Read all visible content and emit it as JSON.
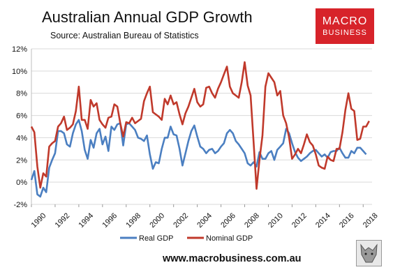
{
  "title": "Australian Annual GDP Growth",
  "subtitle": "Source: Australian Bureau of Statistics",
  "logo": {
    "line1": "MACRO",
    "line2": "BUSINESS"
  },
  "website": "www.macrobusiness.com.au",
  "colors": {
    "real": "#4b7fc1",
    "nominal": "#c0392b",
    "logo_bg": "#d7232a"
  },
  "chart_data": {
    "type": "line",
    "title": "Australian Annual GDP Growth",
    "ylim": [
      -2,
      12
    ],
    "xlim": [
      1990,
      2018.75
    ],
    "y_ticks": [
      "-2%",
      "0%",
      "2%",
      "4%",
      "6%",
      "8%",
      "10%",
      "12%"
    ],
    "x_ticks": [
      "1990",
      "1992",
      "1994",
      "1996",
      "1998",
      "2000",
      "2002",
      "2004",
      "2006",
      "2008",
      "2010",
      "2012",
      "2014",
      "2016",
      "2018"
    ],
    "grid": true,
    "legend_position": "bottom",
    "series": [
      {
        "name": "Real GDP",
        "color": "#4b7fc1",
        "points": [
          [
            1990.0,
            0.2
          ],
          [
            1990.25,
            1.0
          ],
          [
            1990.5,
            -1.1
          ],
          [
            1990.75,
            -1.3
          ],
          [
            1991.0,
            -0.5
          ],
          [
            1991.25,
            -0.9
          ],
          [
            1991.5,
            1.3
          ],
          [
            1991.75,
            2.0
          ],
          [
            1992.0,
            2.6
          ],
          [
            1992.25,
            4.6
          ],
          [
            1992.5,
            4.6
          ],
          [
            1992.75,
            4.4
          ],
          [
            1993.0,
            3.4
          ],
          [
            1993.25,
            3.2
          ],
          [
            1993.5,
            4.4
          ],
          [
            1993.75,
            5.2
          ],
          [
            1994.0,
            5.6
          ],
          [
            1994.25,
            4.6
          ],
          [
            1994.5,
            2.9
          ],
          [
            1994.75,
            2.1
          ],
          [
            1995.0,
            3.8
          ],
          [
            1995.25,
            3.1
          ],
          [
            1995.5,
            4.4
          ],
          [
            1995.75,
            4.8
          ],
          [
            1996.0,
            3.4
          ],
          [
            1996.25,
            4.1
          ],
          [
            1996.5,
            2.8
          ],
          [
            1996.75,
            5.0
          ],
          [
            1997.0,
            4.7
          ],
          [
            1997.25,
            5.2
          ],
          [
            1997.5,
            5.3
          ],
          [
            1997.75,
            3.3
          ],
          [
            1998.0,
            5.2
          ],
          [
            1998.25,
            5.3
          ],
          [
            1998.5,
            5.0
          ],
          [
            1998.75,
            4.7
          ],
          [
            1999.0,
            4.0
          ],
          [
            1999.25,
            3.9
          ],
          [
            1999.5,
            3.7
          ],
          [
            1999.75,
            4.2
          ],
          [
            2000.0,
            2.5
          ],
          [
            2000.25,
            1.2
          ],
          [
            2000.5,
            1.8
          ],
          [
            2000.75,
            1.7
          ],
          [
            2001.0,
            3.0
          ],
          [
            2001.25,
            4.0
          ],
          [
            2001.5,
            4.0
          ],
          [
            2001.75,
            5.0
          ],
          [
            2002.0,
            4.3
          ],
          [
            2002.25,
            4.2
          ],
          [
            2002.5,
            3.0
          ],
          [
            2002.75,
            1.5
          ],
          [
            2003.0,
            2.6
          ],
          [
            2003.25,
            3.7
          ],
          [
            2003.5,
            4.6
          ],
          [
            2003.75,
            5.1
          ],
          [
            2004.0,
            4.1
          ],
          [
            2004.25,
            3.2
          ],
          [
            2004.5,
            3.0
          ],
          [
            2004.75,
            2.6
          ],
          [
            2005.0,
            2.9
          ],
          [
            2005.25,
            3.0
          ],
          [
            2005.5,
            2.6
          ],
          [
            2005.75,
            2.8
          ],
          [
            2006.0,
            3.2
          ],
          [
            2006.25,
            3.5
          ],
          [
            2006.5,
            4.4
          ],
          [
            2006.75,
            4.7
          ],
          [
            2007.0,
            4.4
          ],
          [
            2007.25,
            3.7
          ],
          [
            2007.5,
            3.4
          ],
          [
            2007.75,
            3.0
          ],
          [
            2008.0,
            2.6
          ],
          [
            2008.25,
            1.7
          ],
          [
            2008.5,
            1.5
          ],
          [
            2008.75,
            1.8
          ],
          [
            2009.0,
            1.4
          ],
          [
            2009.25,
            2.7
          ],
          [
            2009.5,
            2.1
          ],
          [
            2009.75,
            2.1
          ],
          [
            2010.0,
            2.6
          ],
          [
            2010.25,
            2.8
          ],
          [
            2010.5,
            2.0
          ],
          [
            2010.75,
            2.9
          ],
          [
            2011.0,
            3.2
          ],
          [
            2011.25,
            3.5
          ],
          [
            2011.5,
            4.8
          ],
          [
            2011.75,
            4.4
          ],
          [
            2012.0,
            3.5
          ],
          [
            2012.25,
            2.7
          ],
          [
            2012.5,
            2.2
          ],
          [
            2012.75,
            1.9
          ],
          [
            2013.0,
            2.1
          ],
          [
            2013.25,
            2.3
          ],
          [
            2013.5,
            2.6
          ],
          [
            2013.75,
            2.8
          ],
          [
            2014.0,
            2.9
          ],
          [
            2014.25,
            2.6
          ],
          [
            2014.5,
            2.3
          ],
          [
            2014.75,
            2.5
          ],
          [
            2015.0,
            2.2
          ],
          [
            2015.25,
            2.7
          ],
          [
            2015.5,
            2.8
          ],
          [
            2015.75,
            2.8
          ],
          [
            2016.0,
            3.1
          ],
          [
            2016.25,
            2.6
          ],
          [
            2016.5,
            2.2
          ],
          [
            2016.75,
            2.2
          ],
          [
            2017.0,
            2.8
          ],
          [
            2017.25,
            2.6
          ],
          [
            2017.5,
            3.1
          ],
          [
            2017.75,
            3.1
          ],
          [
            2018.0,
            2.8
          ],
          [
            2018.25,
            2.5
          ]
        ]
      },
      {
        "name": "Nominal GDP",
        "color": "#c0392b",
        "points": [
          [
            1990.0,
            5.0
          ],
          [
            1990.25,
            4.5
          ],
          [
            1990.5,
            1.4
          ],
          [
            1990.75,
            -0.5
          ],
          [
            1991.0,
            0.8
          ],
          [
            1991.25,
            0.5
          ],
          [
            1991.5,
            3.2
          ],
          [
            1991.75,
            3.5
          ],
          [
            1992.0,
            3.7
          ],
          [
            1992.25,
            5.0
          ],
          [
            1992.5,
            5.3
          ],
          [
            1992.75,
            5.9
          ],
          [
            1993.0,
            4.7
          ],
          [
            1993.25,
            4.9
          ],
          [
            1993.5,
            5.2
          ],
          [
            1993.75,
            6.4
          ],
          [
            1994.0,
            8.6
          ],
          [
            1994.25,
            5.6
          ],
          [
            1994.5,
            5.6
          ],
          [
            1994.75,
            4.8
          ],
          [
            1995.0,
            7.4
          ],
          [
            1995.25,
            6.8
          ],
          [
            1995.5,
            7.1
          ],
          [
            1995.75,
            5.6
          ],
          [
            1996.0,
            5.2
          ],
          [
            1996.25,
            4.9
          ],
          [
            1996.5,
            5.8
          ],
          [
            1996.75,
            5.9
          ],
          [
            1997.0,
            7.0
          ],
          [
            1997.25,
            6.8
          ],
          [
            1997.5,
            5.3
          ],
          [
            1997.75,
            4.1
          ],
          [
            1998.0,
            5.4
          ],
          [
            1998.25,
            5.3
          ],
          [
            1998.5,
            5.8
          ],
          [
            1998.75,
            5.3
          ],
          [
            1999.0,
            5.5
          ],
          [
            1999.25,
            5.7
          ],
          [
            1999.5,
            7.3
          ],
          [
            1999.75,
            8.0
          ],
          [
            2000.0,
            8.6
          ],
          [
            2000.25,
            6.3
          ],
          [
            2000.5,
            6.1
          ],
          [
            2000.75,
            5.9
          ],
          [
            2001.0,
            5.6
          ],
          [
            2001.25,
            7.5
          ],
          [
            2001.5,
            7.0
          ],
          [
            2001.75,
            7.8
          ],
          [
            2002.0,
            7.0
          ],
          [
            2002.25,
            7.2
          ],
          [
            2002.5,
            6.1
          ],
          [
            2002.75,
            5.2
          ],
          [
            2003.0,
            6.2
          ],
          [
            2003.25,
            6.8
          ],
          [
            2003.5,
            7.6
          ],
          [
            2003.75,
            8.4
          ],
          [
            2004.0,
            7.2
          ],
          [
            2004.25,
            6.8
          ],
          [
            2004.5,
            7.0
          ],
          [
            2004.75,
            8.5
          ],
          [
            2005.0,
            8.6
          ],
          [
            2005.25,
            8.0
          ],
          [
            2005.5,
            7.6
          ],
          [
            2005.75,
            8.4
          ],
          [
            2006.0,
            9.0
          ],
          [
            2006.25,
            9.7
          ],
          [
            2006.5,
            10.4
          ],
          [
            2006.75,
            8.6
          ],
          [
            2007.0,
            8.0
          ],
          [
            2007.25,
            7.8
          ],
          [
            2007.5,
            7.6
          ],
          [
            2007.75,
            9.0
          ],
          [
            2008.0,
            10.8
          ],
          [
            2008.25,
            8.7
          ],
          [
            2008.5,
            7.8
          ],
          [
            2008.75,
            3.6
          ],
          [
            2009.0,
            -0.6
          ],
          [
            2009.25,
            2.0
          ],
          [
            2009.5,
            4.2
          ],
          [
            2009.75,
            8.6
          ],
          [
            2010.0,
            9.8
          ],
          [
            2010.25,
            9.4
          ],
          [
            2010.5,
            9.0
          ],
          [
            2010.75,
            7.8
          ],
          [
            2011.0,
            8.2
          ],
          [
            2011.25,
            6.0
          ],
          [
            2011.5,
            5.3
          ],
          [
            2011.75,
            4.0
          ],
          [
            2012.0,
            2.1
          ],
          [
            2012.25,
            2.5
          ],
          [
            2012.5,
            3.0
          ],
          [
            2012.75,
            2.6
          ],
          [
            2013.0,
            3.4
          ],
          [
            2013.25,
            4.3
          ],
          [
            2013.5,
            3.6
          ],
          [
            2013.75,
            3.3
          ],
          [
            2014.0,
            2.5
          ],
          [
            2014.25,
            1.5
          ],
          [
            2014.5,
            1.3
          ],
          [
            2014.75,
            1.2
          ],
          [
            2015.0,
            2.3
          ],
          [
            2015.25,
            2.0
          ],
          [
            2015.5,
            1.9
          ],
          [
            2015.75,
            3.0
          ],
          [
            2016.0,
            3.0
          ],
          [
            2016.25,
            4.5
          ],
          [
            2016.5,
            6.5
          ],
          [
            2016.75,
            8.0
          ],
          [
            2017.0,
            6.6
          ],
          [
            2017.25,
            6.4
          ],
          [
            2017.5,
            3.8
          ],
          [
            2017.75,
            3.9
          ],
          [
            2018.0,
            5.0
          ],
          [
            2018.25,
            5.0
          ],
          [
            2018.5,
            5.5
          ]
        ]
      }
    ]
  }
}
